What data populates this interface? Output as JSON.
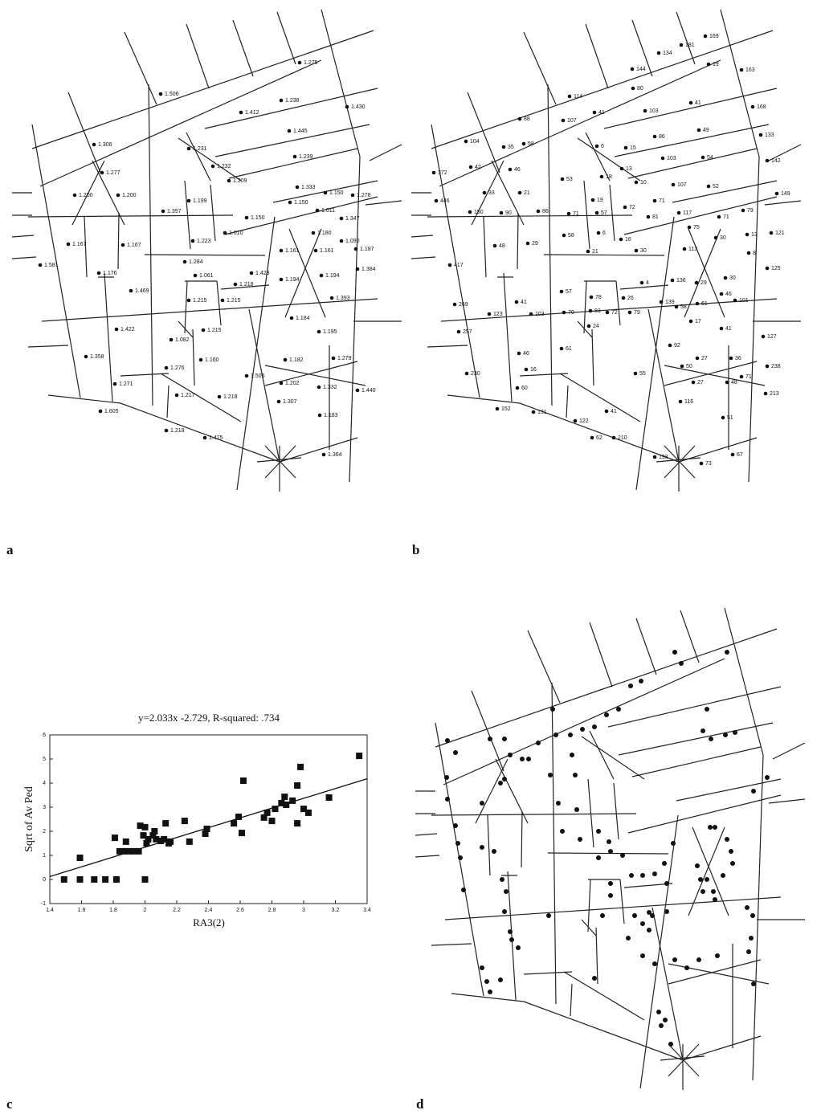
{
  "panels": {
    "a": {
      "letter": "a",
      "labels": [
        "1.275",
        "1.506",
        "1.412",
        "1.238",
        "1.430",
        "1.445",
        "1.306",
        "1.231",
        "1.232",
        "1.239",
        "1.277",
        "1.209",
        "1.333",
        "1.150",
        "1.278",
        "1.200",
        "1.200",
        "1.150",
        "1.011",
        "1.199",
        "1.357",
        "1.150",
        "1.347",
        "1.010",
        "1.180",
        "1.223",
        "1.167",
        "1.167",
        "1.161",
        "1.161",
        "1.090",
        "1.187",
        "1.581",
        "1.284",
        "1.384",
        "1.176",
        "1.428",
        "1.194",
        "1.194",
        "1.061",
        "1.218",
        "1.469",
        "1.215",
        "1.215",
        "1.393",
        "1.422",
        "1.184",
        "1.215",
        "1.082",
        "1.195",
        "1.160",
        "1.358",
        "1.182",
        "1.279",
        "1.276",
        "1.505",
        "1.271",
        "1.202",
        "1.332",
        "1.440",
        "1.217",
        "1.218",
        "1.307",
        "1.605",
        "1.183",
        "1.219",
        "1.425",
        "1.364"
      ]
    },
    "b": {
      "letter": "b",
      "labels": [
        "169",
        "181",
        "134",
        "19",
        "163",
        "144",
        "114",
        "80",
        "88",
        "107",
        "41",
        "103",
        "41",
        "168",
        "104",
        "58",
        "86",
        "49",
        "133",
        "372",
        "42",
        "35",
        "6",
        "15",
        "103",
        "54",
        "142",
        "46",
        "13",
        "18",
        "10",
        "107",
        "53",
        "52",
        "149",
        "446",
        "33",
        "21",
        "71",
        "79",
        "150",
        "90",
        "86",
        "71",
        "57",
        "72",
        "117",
        "19",
        "81",
        "71",
        "75",
        "6",
        "58",
        "16",
        "30",
        "13",
        "121",
        "48",
        "29",
        "21",
        "30",
        "113",
        "8",
        "417",
        "125",
        "136",
        "29",
        "30",
        "4",
        "57",
        "78",
        "26",
        "46",
        "269",
        "41",
        "83",
        "72",
        "79",
        "58",
        "61",
        "101",
        "139",
        "123",
        "103",
        "70",
        "17",
        "257",
        "24",
        "41",
        "127",
        "92",
        "61",
        "46",
        "36",
        "27",
        "230",
        "16",
        "55",
        "50",
        "71",
        "238",
        "27",
        "48",
        "60",
        "116",
        "213",
        "152",
        "131",
        "41",
        "122",
        "51",
        "62",
        "210",
        "193",
        "67",
        "73"
      ]
    },
    "c": {
      "letter": "c"
    },
    "d": {
      "letter": "d"
    }
  },
  "chart_data": {
    "type": "scatter",
    "title": "y=2.033x -2.729, R-squared: .734",
    "x_label": "RA3(2)",
    "y_label": "Sqrt of Av Ped",
    "x": [
      1.49,
      1.59,
      1.68,
      1.75,
      1.82,
      2.0,
      1.59,
      1.81,
      1.84,
      1.87,
      1.9,
      1.88,
      1.93,
      1.96,
      1.97,
      1.99,
      2.0,
      2.01,
      2.02,
      2.05,
      2.06,
      2.07,
      2.1,
      2.12,
      2.13,
      2.15,
      2.16,
      2.25,
      2.28,
      2.38,
      2.39,
      2.56,
      2.59,
      2.61,
      2.62,
      2.75,
      2.77,
      2.8,
      2.82,
      2.86,
      2.88,
      2.89,
      2.93,
      2.96,
      2.96,
      2.98,
      3.0,
      3.03,
      3.16,
      3.35
    ],
    "values": [
      0,
      0,
      0,
      0,
      0,
      0,
      0.9,
      1.73,
      1.17,
      1.17,
      1.17,
      1.57,
      1.17,
      1.17,
      2.23,
      1.83,
      2.17,
      1.5,
      1.67,
      1.83,
      2.0,
      1.67,
      1.6,
      1.67,
      2.33,
      1.5,
      1.57,
      2.43,
      1.57,
      1.9,
      2.1,
      2.33,
      2.6,
      1.93,
      4.1,
      2.57,
      2.77,
      2.43,
      2.93,
      3.17,
      3.43,
      3.1,
      3.27,
      2.33,
      3.9,
      4.67,
      2.93,
      2.77,
      3.4,
      5.13
    ],
    "color": "#111111",
    "fit_line": {
      "x": [
        1.4,
        3.4
      ],
      "values": [
        0.12,
        4.18
      ]
    },
    "xlim": [
      1.4,
      3.4
    ],
    "xticks": [
      1.4,
      1.6,
      1.8,
      2,
      2.2,
      2.4,
      2.6,
      2.8,
      3,
      3.2,
      3.4
    ],
    "ylim": [
      -1,
      6
    ],
    "yticks": [
      -1,
      0,
      1,
      2,
      3,
      4,
      5,
      6
    ],
    "grid": false
  }
}
